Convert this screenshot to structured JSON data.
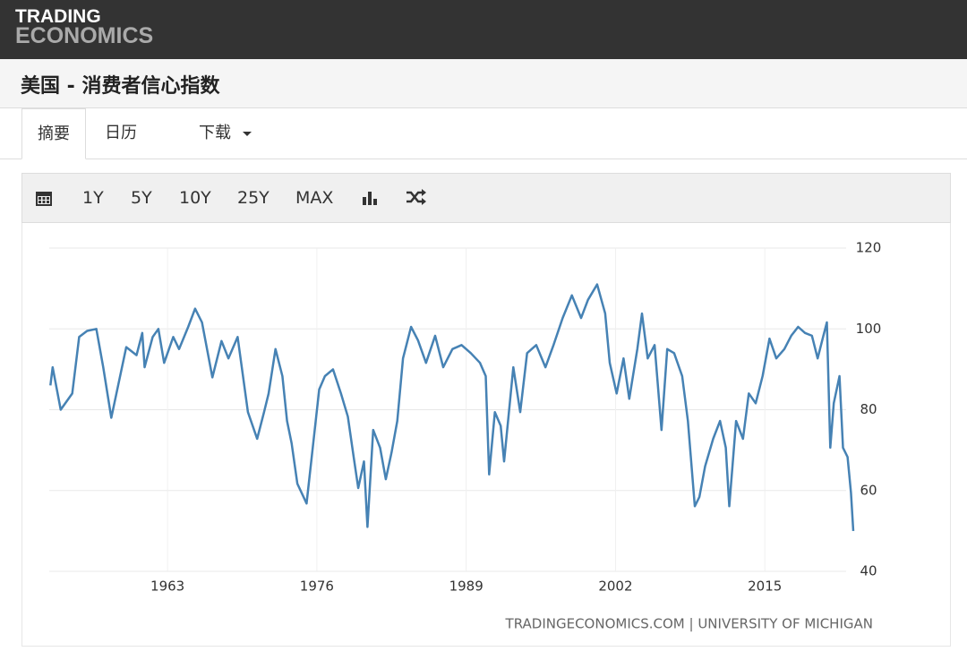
{
  "header": {
    "logo": [
      "TRADING",
      "ECONOMICS"
    ]
  },
  "title": "美国 - 消费者信心指数",
  "tabs": [
    "摘要",
    "日历",
    "下载"
  ],
  "toolbar": [
    "1Y",
    "5Y",
    "10Y",
    "25Y",
    "MAX"
  ],
  "chart_data": {
    "type": "line",
    "color": "#4682b4",
    "x": [
      1952.8,
      1953.0,
      1953.7,
      1954.7,
      1955.3,
      1956.0,
      1956.8,
      1957.4,
      1958.1,
      1959.4,
      1960.3,
      1960.8,
      1961.0,
      1961.7,
      1962.2,
      1962.7,
      1963.5,
      1964.0,
      1964.8,
      1965.4,
      1966.0,
      1966.9,
      1967.7,
      1968.3,
      1969.1,
      1970.0,
      1970.8,
      1971.4,
      1971.8,
      1972.4,
      1973.0,
      1973.4,
      1973.8,
      1974.3,
      1975.1,
      1975.9,
      1976.2,
      1976.7,
      1977.4,
      1978.1,
      1978.7,
      1979.2,
      1979.6,
      1980.1,
      1980.4,
      1980.9,
      1981.5,
      1982.0,
      1982.5,
      1983.0,
      1983.5,
      1984.2,
      1984.8,
      1985.5,
      1986.3,
      1987.0,
      1987.8,
      1988.6,
      1989.4,
      1990.2,
      1990.7,
      1991.0,
      1991.5,
      1992.0,
      1992.3,
      1993.1,
      1993.7,
      1994.3,
      1995.1,
      1995.9,
      1996.6,
      1997.4,
      1998.2,
      1999.0,
      1999.6,
      2000.4,
      2001.1,
      2001.5,
      2002.1,
      2002.7,
      2003.2,
      2003.9,
      2004.3,
      2004.8,
      2005.4,
      2006.0,
      2006.5,
      2007.1,
      2007.8,
      2008.3,
      2008.9,
      2009.3,
      2009.8,
      2010.5,
      2011.1,
      2011.6,
      2011.9,
      2012.5,
      2013.1,
      2013.6,
      2014.2,
      2014.8,
      2015.4,
      2016.0,
      2016.7,
      2017.3,
      2017.9,
      2018.5,
      2019.1,
      2019.6,
      2020.1,
      2020.4,
      2020.7,
      2021.0,
      2021.5,
      2021.8,
      2022.2,
      2022.5,
      2022.7
    ],
    "values": [
      86,
      90.5,
      80,
      84,
      98,
      99.5,
      100,
      90.5,
      78,
      95.5,
      93.5,
      99,
      90.5,
      98,
      100,
      91.6,
      98,
      95,
      100.5,
      105,
      101.6,
      88,
      97,
      92.7,
      98,
      79.4,
      72.8,
      79.4,
      84,
      95,
      88.3,
      77.2,
      71.7,
      61.7,
      56.8,
      77.2,
      85,
      88.3,
      90,
      84,
      78.3,
      68.3,
      60.6,
      67.2,
      51,
      75,
      70.6,
      62.8,
      69.4,
      77.2,
      92.7,
      100.5,
      97.2,
      91.6,
      98.3,
      90.5,
      95,
      96,
      94,
      91.6,
      88.3,
      64,
      79.4,
      76,
      67.2,
      90.5,
      79.4,
      94,
      96,
      90.5,
      96,
      102.7,
      108.3,
      102.7,
      107.2,
      111,
      103.8,
      91.6,
      84,
      92.7,
      82.7,
      95,
      103.8,
      92.7,
      96,
      75,
      95,
      94,
      88.3,
      77.2,
      56.1,
      58.4,
      66,
      72.8,
      77.2,
      70.6,
      56.1,
      77.2,
      72.8,
      84,
      81.6,
      88.3,
      97.6,
      92.7,
      95,
      98.3,
      100.5,
      99,
      98.3,
      92.7,
      98.3,
      101.6,
      70.6,
      81.6,
      88.3,
      70.6,
      68.3,
      59.5,
      50
    ],
    "xlim": [
      1952.7,
      2022.7
    ],
    "xticks": [
      1963,
      1976,
      1989,
      2002,
      2015
    ],
    "ylim": [
      40,
      120
    ],
    "yticks": [
      40,
      60,
      80,
      100,
      120
    ],
    "grid": true,
    "source": "TRADINGECONOMICS.COM | UNIVERSITY OF MICHIGAN"
  }
}
